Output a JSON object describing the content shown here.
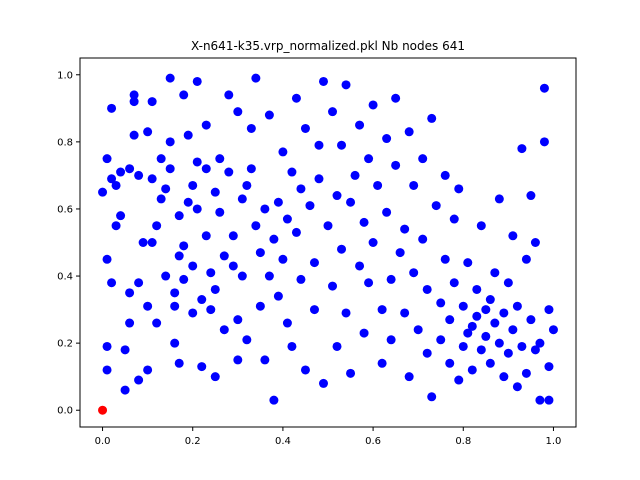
{
  "chart_data": {
    "type": "scatter",
    "title": "X-n641-k35.vrp_normalized.pkl Nb nodes 641",
    "xlabel": "",
    "ylabel": "",
    "xlim": [
      -0.05,
      1.05
    ],
    "ylim": [
      -0.05,
      1.05
    ],
    "xticks": [
      "0.0",
      "0.2",
      "0.4",
      "0.6",
      "0.8",
      "1.0"
    ],
    "yticks": [
      "0.0",
      "0.2",
      "0.4",
      "0.6",
      "0.8",
      "1.0"
    ],
    "grid": false,
    "colors": {
      "nodes": "#0000ff",
      "depot": "#ff0000"
    },
    "depot": {
      "x": 0.0,
      "y": 0.0
    },
    "nodes": [
      [
        0.0,
        0.65
      ],
      [
        0.01,
        0.75
      ],
      [
        0.01,
        0.45
      ],
      [
        0.01,
        0.19
      ],
      [
        0.01,
        0.12
      ],
      [
        0.02,
        0.38
      ],
      [
        0.02,
        0.69
      ],
      [
        0.02,
        0.9
      ],
      [
        0.03,
        0.55
      ],
      [
        0.03,
        0.67
      ],
      [
        0.04,
        0.71
      ],
      [
        0.04,
        0.58
      ],
      [
        0.05,
        0.18
      ],
      [
        0.05,
        0.06
      ],
      [
        0.06,
        0.35
      ],
      [
        0.06,
        0.26
      ],
      [
        0.06,
        0.72
      ],
      [
        0.07,
        0.92
      ],
      [
        0.07,
        0.94
      ],
      [
        0.07,
        0.82
      ],
      [
        0.08,
        0.7
      ],
      [
        0.08,
        0.38
      ],
      [
        0.08,
        0.09
      ],
      [
        0.09,
        0.5
      ],
      [
        0.1,
        0.31
      ],
      [
        0.1,
        0.12
      ],
      [
        0.1,
        0.83
      ],
      [
        0.11,
        0.92
      ],
      [
        0.11,
        0.69
      ],
      [
        0.11,
        0.5
      ],
      [
        0.12,
        0.55
      ],
      [
        0.12,
        0.26
      ],
      [
        0.13,
        0.63
      ],
      [
        0.13,
        0.75
      ],
      [
        0.14,
        0.4
      ],
      [
        0.14,
        0.66
      ],
      [
        0.15,
        0.8
      ],
      [
        0.15,
        0.72
      ],
      [
        0.15,
        0.99
      ],
      [
        0.16,
        0.35
      ],
      [
        0.16,
        0.2
      ],
      [
        0.16,
        0.31
      ],
      [
        0.17,
        0.58
      ],
      [
        0.17,
        0.14
      ],
      [
        0.17,
        0.46
      ],
      [
        0.18,
        0.49
      ],
      [
        0.18,
        0.39
      ],
      [
        0.18,
        0.94
      ],
      [
        0.19,
        0.82
      ],
      [
        0.19,
        0.62
      ],
      [
        0.2,
        0.67
      ],
      [
        0.2,
        0.43
      ],
      [
        0.2,
        0.29
      ],
      [
        0.21,
        0.98
      ],
      [
        0.21,
        0.74
      ],
      [
        0.21,
        0.6
      ],
      [
        0.22,
        0.13
      ],
      [
        0.22,
        0.33
      ],
      [
        0.23,
        0.85
      ],
      [
        0.23,
        0.72
      ],
      [
        0.23,
        0.52
      ],
      [
        0.24,
        0.41
      ],
      [
        0.24,
        0.3
      ],
      [
        0.25,
        0.1
      ],
      [
        0.25,
        0.65
      ],
      [
        0.25,
        0.36
      ],
      [
        0.26,
        0.59
      ],
      [
        0.26,
        0.75
      ],
      [
        0.27,
        0.24
      ],
      [
        0.27,
        0.46
      ],
      [
        0.28,
        0.94
      ],
      [
        0.28,
        0.71
      ],
      [
        0.29,
        0.52
      ],
      [
        0.29,
        0.43
      ],
      [
        0.3,
        0.15
      ],
      [
        0.3,
        0.89
      ],
      [
        0.3,
        0.27
      ],
      [
        0.31,
        0.63
      ],
      [
        0.31,
        0.4
      ],
      [
        0.32,
        0.21
      ],
      [
        0.32,
        0.67
      ],
      [
        0.33,
        0.72
      ],
      [
        0.33,
        0.84
      ],
      [
        0.34,
        0.55
      ],
      [
        0.34,
        0.99
      ],
      [
        0.35,
        0.31
      ],
      [
        0.35,
        0.47
      ],
      [
        0.36,
        0.15
      ],
      [
        0.36,
        0.6
      ],
      [
        0.37,
        0.88
      ],
      [
        0.37,
        0.4
      ],
      [
        0.38,
        0.51
      ],
      [
        0.38,
        0.03
      ],
      [
        0.39,
        0.62
      ],
      [
        0.39,
        0.34
      ],
      [
        0.4,
        0.77
      ],
      [
        0.4,
        0.45
      ],
      [
        0.41,
        0.26
      ],
      [
        0.41,
        0.57
      ],
      [
        0.42,
        0.71
      ],
      [
        0.42,
        0.19
      ],
      [
        0.43,
        0.93
      ],
      [
        0.43,
        0.53
      ],
      [
        0.44,
        0.39
      ],
      [
        0.44,
        0.66
      ],
      [
        0.45,
        0.84
      ],
      [
        0.45,
        0.12
      ],
      [
        0.46,
        0.61
      ],
      [
        0.47,
        0.3
      ],
      [
        0.47,
        0.44
      ],
      [
        0.48,
        0.79
      ],
      [
        0.48,
        0.69
      ],
      [
        0.49,
        0.98
      ],
      [
        0.49,
        0.08
      ],
      [
        0.5,
        0.55
      ],
      [
        0.51,
        0.37
      ],
      [
        0.51,
        0.89
      ],
      [
        0.52,
        0.64
      ],
      [
        0.52,
        0.19
      ],
      [
        0.53,
        0.79
      ],
      [
        0.53,
        0.48
      ],
      [
        0.54,
        0.97
      ],
      [
        0.54,
        0.29
      ],
      [
        0.55,
        0.62
      ],
      [
        0.55,
        0.11
      ],
      [
        0.56,
        0.7
      ],
      [
        0.57,
        0.43
      ],
      [
        0.57,
        0.85
      ],
      [
        0.58,
        0.23
      ],
      [
        0.58,
        0.56
      ],
      [
        0.59,
        0.75
      ],
      [
        0.59,
        0.38
      ],
      [
        0.6,
        0.91
      ],
      [
        0.6,
        0.5
      ],
      [
        0.61,
        0.67
      ],
      [
        0.62,
        0.3
      ],
      [
        0.62,
        0.14
      ],
      [
        0.63,
        0.81
      ],
      [
        0.63,
        0.59
      ],
      [
        0.64,
        0.39
      ],
      [
        0.64,
        0.21
      ],
      [
        0.65,
        0.93
      ],
      [
        0.65,
        0.73
      ],
      [
        0.66,
        0.47
      ],
      [
        0.67,
        0.29
      ],
      [
        0.67,
        0.54
      ],
      [
        0.68,
        0.83
      ],
      [
        0.68,
        0.1
      ],
      [
        0.69,
        0.41
      ],
      [
        0.69,
        0.67
      ],
      [
        0.7,
        0.24
      ],
      [
        0.71,
        0.51
      ],
      [
        0.71,
        0.75
      ],
      [
        0.72,
        0.17
      ],
      [
        0.72,
        0.36
      ],
      [
        0.73,
        0.87
      ],
      [
        0.73,
        0.04
      ],
      [
        0.74,
        0.61
      ],
      [
        0.75,
        0.32
      ],
      [
        0.75,
        0.21
      ],
      [
        0.76,
        0.45
      ],
      [
        0.76,
        0.7
      ],
      [
        0.77,
        0.14
      ],
      [
        0.77,
        0.27
      ],
      [
        0.78,
        0.38
      ],
      [
        0.78,
        0.57
      ],
      [
        0.79,
        0.09
      ],
      [
        0.79,
        0.66
      ],
      [
        0.8,
        0.19
      ],
      [
        0.8,
        0.31
      ],
      [
        0.81,
        0.23
      ],
      [
        0.81,
        0.44
      ],
      [
        0.82,
        0.25
      ],
      [
        0.82,
        0.12
      ],
      [
        0.83,
        0.36
      ],
      [
        0.83,
        0.28
      ],
      [
        0.84,
        0.18
      ],
      [
        0.84,
        0.55
      ],
      [
        0.85,
        0.22
      ],
      [
        0.85,
        0.3
      ],
      [
        0.86,
        0.14
      ],
      [
        0.86,
        0.33
      ],
      [
        0.87,
        0.26
      ],
      [
        0.87,
        0.41
      ],
      [
        0.88,
        0.2
      ],
      [
        0.88,
        0.63
      ],
      [
        0.89,
        0.29
      ],
      [
        0.89,
        0.1
      ],
      [
        0.9,
        0.17
      ],
      [
        0.9,
        0.38
      ],
      [
        0.91,
        0.24
      ],
      [
        0.91,
        0.52
      ],
      [
        0.92,
        0.07
      ],
      [
        0.92,
        0.31
      ],
      [
        0.93,
        0.78
      ],
      [
        0.93,
        0.19
      ],
      [
        0.94,
        0.45
      ],
      [
        0.94,
        0.11
      ],
      [
        0.95,
        0.27
      ],
      [
        0.95,
        0.64
      ],
      [
        0.96,
        0.5
      ],
      [
        0.97,
        0.03
      ],
      [
        0.97,
        0.2
      ],
      [
        0.98,
        0.96
      ],
      [
        0.98,
        0.8
      ],
      [
        0.99,
        0.3
      ],
      [
        0.99,
        0.03
      ],
      [
        1.0,
        0.24
      ],
      [
        0.99,
        0.13
      ],
      [
        0.96,
        0.18
      ]
    ]
  }
}
